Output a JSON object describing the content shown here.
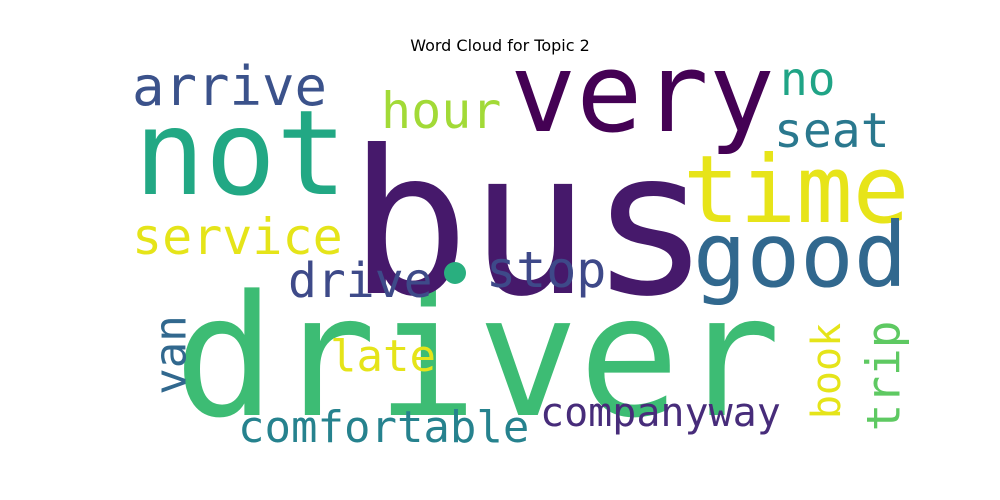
{
  "chart_data": {
    "type": "wordcloud",
    "title": "Word Cloud for Topic 2",
    "colormap": "viridis",
    "background": "#ffffff",
    "words": [
      {
        "text": "driver",
        "color": "#3dbc74",
        "vertical": false
      },
      {
        "text": "bus",
        "color": "#46196b",
        "vertical": false
      },
      {
        "text": "not",
        "color": "#22a884",
        "vertical": false
      },
      {
        "text": "very",
        "color": "#440154",
        "vertical": false
      },
      {
        "text": "time",
        "color": "#e7e419",
        "vertical": false
      },
      {
        "text": "good",
        "color": "#31688e",
        "vertical": false
      },
      {
        "text": "arrive",
        "color": "#3b528b",
        "vertical": false
      },
      {
        "text": "hour",
        "color": "#a2da37",
        "vertical": false
      },
      {
        "text": "no",
        "color": "#20a486",
        "vertical": false
      },
      {
        "text": "seat",
        "color": "#2a788e",
        "vertical": false
      },
      {
        "text": "service",
        "color": "#e5e419",
        "vertical": false
      },
      {
        "text": "drive",
        "color": "#3e4a89",
        "vertical": false
      },
      {
        "text": "stop",
        "color": "#3e4989",
        "vertical": false
      },
      {
        "text": "van",
        "color": "#31688e",
        "vertical": true
      },
      {
        "text": "late",
        "color": "#e5e419",
        "vertical": false
      },
      {
        "text": "book",
        "color": "#e5e419",
        "vertical": true
      },
      {
        "text": "trip",
        "color": "#5ec962",
        "vertical": true
      },
      {
        "text": "comfortable",
        "color": "#26828e",
        "vertical": false
      },
      {
        "text": "companyway",
        "color": "#472c7a",
        "vertical": false
      },
      {
        "text": "dot",
        "color": "#29af7f",
        "vertical": false
      }
    ]
  }
}
